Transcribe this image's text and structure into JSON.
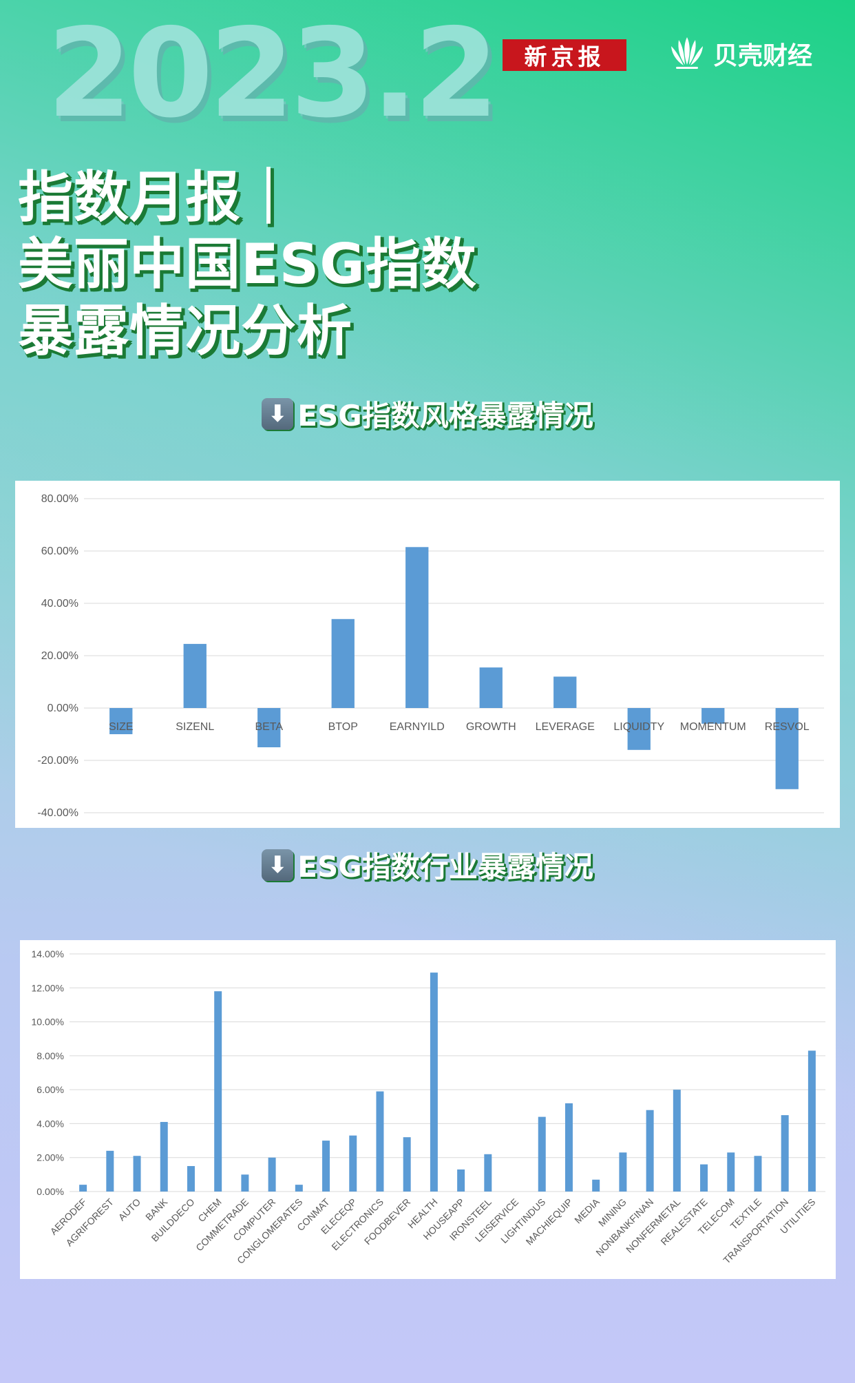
{
  "header": {
    "year": "2023.2",
    "brand_xjb": "新京报",
    "brand_beike": "贝壳财经"
  },
  "title_lines": [
    "指数月报｜",
    "美丽中国ESG指数",
    "暴露情况分析"
  ],
  "sections": {
    "style_heading": "ESG指数风格暴露情况",
    "industry_heading": "ESG指数行业暴露情况",
    "arrow_icon": "down-arrow-icon"
  },
  "colors": {
    "bar": "#5b9bd5",
    "grid": "#d9d9d9",
    "title_shadow": "#1b7a35",
    "brand_red": "#c8161d"
  },
  "chart_data": [
    {
      "type": "bar",
      "title": "",
      "xlabel": "",
      "ylabel": "",
      "ylim": [
        -0.4,
        0.8
      ],
      "y_ticks": [
        "80.00%",
        "60.00%",
        "40.00%",
        "20.00%",
        "0.00%",
        "-20.00%",
        "-40.00%"
      ],
      "y_tick_values": [
        0.8,
        0.6,
        0.4,
        0.2,
        0.0,
        -0.2,
        -0.4
      ],
      "categories": [
        "SIZE",
        "SIZENL",
        "BETA",
        "BTOP",
        "EARNYILD",
        "GROWTH",
        "LEVERAGE",
        "LIQUIDTY",
        "MOMENTUM",
        "RESVOL"
      ],
      "values": [
        -0.1,
        0.245,
        -0.15,
        0.34,
        0.615,
        0.155,
        0.12,
        -0.16,
        -0.06,
        -0.31
      ],
      "grid": true,
      "legend": "none"
    },
    {
      "type": "bar",
      "title": "",
      "xlabel": "",
      "ylabel": "",
      "ylim": [
        0,
        0.14
      ],
      "y_ticks": [
        "14.00%",
        "12.00%",
        "10.00%",
        "8.00%",
        "6.00%",
        "4.00%",
        "2.00%",
        "0.00%"
      ],
      "y_tick_values": [
        0.14,
        0.12,
        0.1,
        0.08,
        0.06,
        0.04,
        0.02,
        0.0
      ],
      "categories": [
        "AERODEF",
        "AGRIFOREST",
        "AUTO",
        "BANK",
        "BUILDDECO",
        "CHEM",
        "COMMETRADE",
        "COMPUTER",
        "CONGLOMERATES",
        "CONMAT",
        "ELECEQP",
        "ELECTRONICS",
        "FOODBEVER",
        "HEALTH",
        "HOUSEAPP",
        "IRONSTEEL",
        "LEISERVICE",
        "LIGHTINDUS",
        "MACHIEQUIP",
        "MEDIA",
        "MINING",
        "NONBANKFINAN",
        "NONFERMETAL",
        "REALESTATE",
        "TELECOM",
        "TEXTILE",
        "TRANSPORTATION",
        "UTILITIES"
      ],
      "values": [
        0.004,
        0.024,
        0.021,
        0.041,
        0.015,
        0.118,
        0.01,
        0.02,
        0.004,
        0.03,
        0.033,
        0.059,
        0.032,
        0.129,
        0.013,
        0.022,
        0.0,
        0.044,
        0.052,
        0.007,
        0.023,
        0.048,
        0.06,
        0.016,
        0.023,
        0.021,
        0.045,
        0.083
      ],
      "grid": true,
      "legend": "none"
    }
  ]
}
